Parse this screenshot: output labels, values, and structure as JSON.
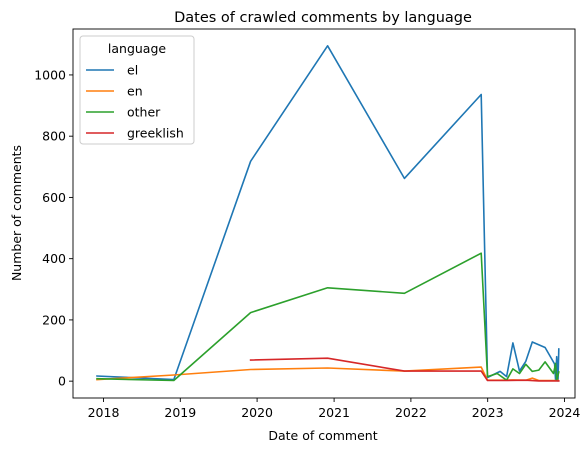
{
  "chart_data": {
    "type": "line",
    "title": "Dates of crawled comments by language",
    "xlabel": "Date of comment",
    "ylabel": "Number of comments",
    "xlim": [
      "2017-08-09",
      "2024-02-20"
    ],
    "ylim": [
      -55,
      1150
    ],
    "xticks": [
      {
        "date": "2018-01-01",
        "label": "2018"
      },
      {
        "date": "2019-01-01",
        "label": "2019"
      },
      {
        "date": "2020-01-01",
        "label": "2020"
      },
      {
        "date": "2021-01-01",
        "label": "2021"
      },
      {
        "date": "2022-01-01",
        "label": "2022"
      },
      {
        "date": "2023-01-01",
        "label": "2023"
      },
      {
        "date": "2024-01-01",
        "label": "2024"
      }
    ],
    "yticks": [
      0,
      200,
      400,
      600,
      800,
      1000
    ],
    "grid": false,
    "legend": {
      "title": "language",
      "placement": "top-left"
    },
    "series": [
      {
        "name": "el",
        "color": "#1f77b4",
        "points": [
          [
            "2017-12-01",
            17
          ],
          [
            "2018-12-01",
            5
          ],
          [
            "2019-12-01",
            718
          ],
          [
            "2020-12-01",
            1095
          ],
          [
            "2021-12-01",
            662
          ],
          [
            "2022-12-01",
            936
          ],
          [
            "2022-12-31",
            12
          ],
          [
            "2023-03-01",
            32
          ],
          [
            "2023-04-01",
            15
          ],
          [
            "2023-05-01",
            125
          ],
          [
            "2023-06-01",
            33
          ],
          [
            "2023-07-01",
            65
          ],
          [
            "2023-08-01",
            128
          ],
          [
            "2023-10-01",
            110
          ],
          [
            "2023-11-15",
            56
          ],
          [
            "2023-11-20",
            2
          ],
          [
            "2023-11-25",
            80
          ],
          [
            "2023-12-01",
            1
          ],
          [
            "2023-12-05",
            105
          ]
        ]
      },
      {
        "name": "en",
        "color": "#ff7f0e",
        "points": [
          [
            "2017-12-01",
            5
          ],
          [
            "2018-12-01",
            20
          ],
          [
            "2019-12-01",
            38
          ],
          [
            "2020-12-01",
            43
          ],
          [
            "2021-12-01",
            33
          ],
          [
            "2022-12-01",
            46
          ],
          [
            "2022-12-31",
            3
          ],
          [
            "2023-03-01",
            3
          ],
          [
            "2023-05-01",
            4
          ],
          [
            "2023-07-01",
            3
          ],
          [
            "2023-08-01",
            10
          ],
          [
            "2023-09-01",
            2
          ],
          [
            "2023-11-20",
            2
          ],
          [
            "2023-12-01",
            3
          ]
        ]
      },
      {
        "name": "other",
        "color": "#2ca02c",
        "points": [
          [
            "2017-12-01",
            8
          ],
          [
            "2018-12-01",
            2
          ],
          [
            "2019-12-01",
            224
          ],
          [
            "2020-12-01",
            305
          ],
          [
            "2021-12-01",
            287
          ],
          [
            "2022-12-01",
            418
          ],
          [
            "2022-12-31",
            15
          ],
          [
            "2023-02-15",
            25
          ],
          [
            "2023-04-01",
            3
          ],
          [
            "2023-05-01",
            40
          ],
          [
            "2023-06-01",
            25
          ],
          [
            "2023-07-01",
            55
          ],
          [
            "2023-08-01",
            32
          ],
          [
            "2023-09-01",
            36
          ],
          [
            "2023-10-01",
            63
          ],
          [
            "2023-11-10",
            25
          ],
          [
            "2023-11-20",
            58
          ],
          [
            "2023-11-25",
            2
          ],
          [
            "2023-12-05",
            30
          ]
        ]
      },
      {
        "name": "greeklish",
        "color": "#d62728",
        "points": [
          [
            "2019-12-01",
            69
          ],
          [
            "2020-12-01",
            75
          ],
          [
            "2021-12-01",
            33
          ],
          [
            "2022-12-01",
            33
          ],
          [
            "2022-12-31",
            2
          ],
          [
            "2023-04-01",
            2
          ],
          [
            "2023-07-01",
            3
          ],
          [
            "2023-09-01",
            1
          ],
          [
            "2023-12-05",
            1
          ]
        ]
      }
    ]
  }
}
